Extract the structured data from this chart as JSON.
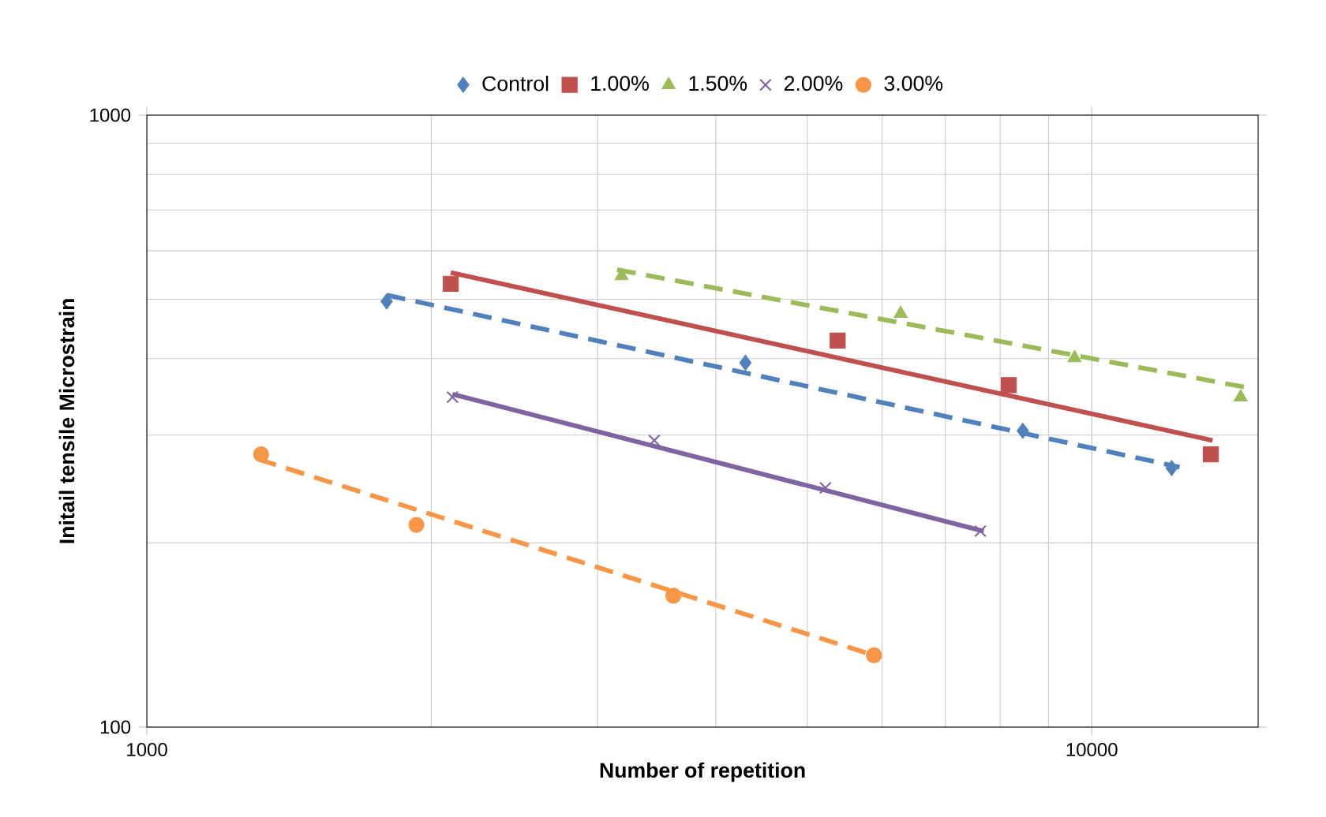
{
  "chart_data": {
    "type": "scatter",
    "xlabel": "Number of repetition",
    "ylabel": "Initail tensile Microstrain",
    "log": "xy",
    "grid": true,
    "legend": "top",
    "xlim": [
      1000,
      15000
    ],
    "ylim": [
      100,
      1000
    ],
    "xticks": [
      1000,
      10000
    ],
    "yticks": [
      100,
      1000
    ],
    "series": [
      {
        "name": "Control",
        "marker": "diamond",
        "color": "#4f81bd",
        "x": [
          1794,
          4300,
          8453,
          12150
        ],
        "values": [
          496,
          394,
          305,
          265
        ]
      },
      {
        "name": "1.00%",
        "marker": "square",
        "color": "#c0504d",
        "x": [
          2097,
          5384,
          8170,
          13366
        ],
        "values": [
          530,
          428,
          362,
          279
        ]
      },
      {
        "name": "1.50%",
        "marker": "triangle",
        "color": "#9bbb59",
        "x": [
          3180,
          6278,
          9590,
          14375
        ],
        "values": [
          546,
          474,
          401,
          346
        ]
      },
      {
        "name": "2.00%",
        "marker": "cross",
        "color": "#8064a2",
        "x": [
          2106,
          3444,
          5226,
          7624
        ],
        "values": [
          346,
          294,
          246,
          209
        ]
      },
      {
        "name": "3.00%",
        "marker": "circle",
        "color": "#f79646",
        "x": [
          1321,
          1929,
          3608,
          5882
        ],
        "values": [
          279,
          214,
          164,
          131
        ]
      },
      {
        "type": "line",
        "line_style": "dashed",
        "marker": "none",
        "color": "#4f81bd",
        "x": [
          1794,
          12386
        ],
        "values": [
          508,
          266
        ]
      },
      {
        "type": "line",
        "line_style": "solid",
        "marker": "none",
        "color": "#c0504d",
        "x": [
          2097,
          13424
        ],
        "values": [
          553,
          294
        ]
      },
      {
        "type": "line",
        "line_style": "dashed",
        "marker": "none",
        "color": "#9bbb59",
        "x": [
          3145,
          14710
        ],
        "values": [
          559,
          358
        ]
      },
      {
        "type": "line",
        "line_style": "solid",
        "marker": "none",
        "color": "#8064a2",
        "x": [
          2106,
          7686
        ],
        "values": [
          350,
          209
        ]
      },
      {
        "type": "line",
        "line_style": "dashed",
        "marker": "none",
        "color": "#f79646",
        "x": [
          1311,
          5882
        ],
        "values": [
          274,
          131
        ]
      }
    ]
  }
}
